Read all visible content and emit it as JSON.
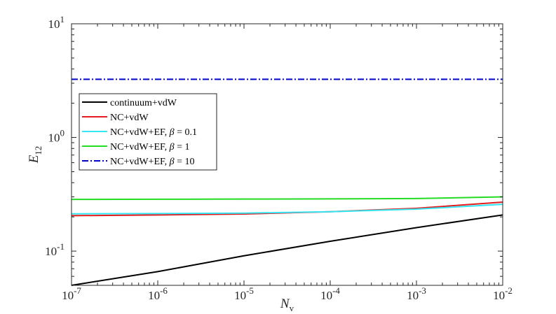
{
  "chart_data": {
    "type": "line",
    "title": "",
    "xlabel": {
      "base": "N",
      "sub": "v"
    },
    "ylabel": {
      "base": "E",
      "sub": "12"
    },
    "xscale": "log",
    "yscale": "log",
    "xlim": [
      1e-07,
      0.01
    ],
    "ylim": [
      0.05,
      10
    ],
    "grid": false,
    "legend_position": "upper-left",
    "x_ticks": [
      {
        "value": 1e-07,
        "base": "10",
        "exp": "-7"
      },
      {
        "value": 1e-06,
        "base": "10",
        "exp": "-6"
      },
      {
        "value": 1e-05,
        "base": "10",
        "exp": "-5"
      },
      {
        "value": 0.0001,
        "base": "10",
        "exp": "-4"
      },
      {
        "value": 0.001,
        "base": "10",
        "exp": "-3"
      },
      {
        "value": 0.01,
        "base": "10",
        "exp": "-2"
      }
    ],
    "y_ticks": [
      {
        "value": 0.1,
        "base": "10",
        "exp": "-1"
      },
      {
        "value": 1,
        "base": "10",
        "exp": "0"
      },
      {
        "value": 10,
        "base": "10",
        "exp": "1"
      }
    ],
    "series": [
      {
        "name": "continuum+vdW",
        "color": "#000000",
        "dash": "solid",
        "x": [
          1e-07,
          1e-06,
          1e-05,
          0.0001,
          0.001,
          0.01
        ],
        "y": [
          0.05,
          0.066,
          0.091,
          0.122,
          0.161,
          0.208
        ]
      },
      {
        "name": "NC+vdW",
        "color": "#e41a1c",
        "dash": "solid",
        "x": [
          1e-07,
          1e-06,
          1e-05,
          0.0001,
          0.001,
          0.01
        ],
        "y": [
          0.205,
          0.208,
          0.212,
          0.222,
          0.238,
          0.27
        ]
      },
      {
        "name": "NC+vdW+EF, β = 0.1",
        "color": "#33e6f2",
        "dash": "solid",
        "x": [
          1e-07,
          1e-06,
          1e-05,
          0.0001,
          0.001,
          0.01
        ],
        "y": [
          0.213,
          0.214,
          0.216,
          0.222,
          0.234,
          0.258
        ]
      },
      {
        "name": "NC+vdW+EF, β = 1",
        "color": "#22dd22",
        "dash": "solid",
        "x": [
          1e-07,
          1e-06,
          1e-05,
          0.0001,
          0.001,
          0.01
        ],
        "y": [
          0.285,
          0.286,
          0.287,
          0.288,
          0.29,
          0.3
        ]
      },
      {
        "name": "NC+vdW+EF, β = 10",
        "color": "#0000cc",
        "dash": "dashdot",
        "x": [
          1e-07,
          1e-06,
          1e-05,
          0.0001,
          0.001,
          0.01
        ],
        "y": [
          3.25,
          3.25,
          3.25,
          3.25,
          3.25,
          3.25
        ]
      }
    ]
  }
}
